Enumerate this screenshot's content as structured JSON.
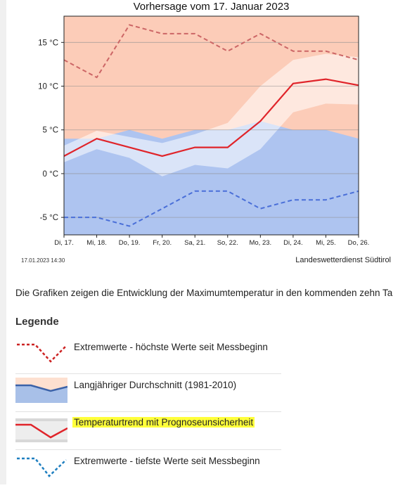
{
  "chart_data": {
    "type": "line",
    "title": "Vorhersage vom 17. Januar 2023",
    "categories": [
      "Di, 17.",
      "Mi, 18.",
      "Do, 19.",
      "Fr, 20.",
      "Sa, 21.",
      "So, 22.",
      "Mo, 23.",
      "Di, 24.",
      "Mi, 25.",
      "Do, 26."
    ],
    "ylim": [
      -7,
      18
    ],
    "yticks": [
      15,
      10,
      5,
      0,
      -5
    ],
    "ytick_labels": [
      "15 °C",
      "10 °C",
      "5 °C",
      "0 °C",
      "-5 °C"
    ],
    "grid": true,
    "series": [
      {
        "name": "Extremwerte - höchste Werte seit Messbeginn",
        "style": "dashed",
        "color": "#cc6666",
        "values": [
          13,
          11,
          17,
          16,
          16,
          14,
          16,
          14,
          14,
          13
        ]
      },
      {
        "name": "Langjähriger Durchschnitt (1981-2010)",
        "style": "area",
        "color": "#aec4f0",
        "values": [
          4,
          4,
          5,
          4,
          5,
          5,
          6,
          5,
          5,
          4
        ]
      },
      {
        "name": "Temperaturtrend mit Prognoseunsicherheit",
        "style": "line",
        "color": "#e0242a",
        "values": [
          2,
          4,
          3,
          2,
          3,
          3,
          6,
          10.3,
          10.8,
          10.1
        ],
        "uncertainty_low": [
          1.3,
          2.8,
          1.8,
          -0.3,
          1,
          0.6,
          2.8,
          7,
          8,
          7.9
        ],
        "uncertainty_high": [
          3.2,
          4.9,
          4.2,
          3.5,
          4.5,
          5.8,
          10,
          13,
          13.7,
          13.3
        ]
      },
      {
        "name": "Extremwerte - tiefste Werte seit Messbeginn",
        "style": "dashed",
        "color": "#4a6fd8",
        "values": [
          -5,
          -5,
          -6,
          -4,
          -2,
          -2,
          -4,
          -3,
          -3,
          -2
        ]
      }
    ]
  },
  "footer": {
    "timestamp": "17.01.2023 14:30",
    "source": "Landeswetterdienst Südtirol"
  },
  "text": {
    "description": "Die Grafiken zeigen die Entwicklung der Maximumtemperatur in den kommenden zehn Ta",
    "legend_heading": "Legende"
  },
  "legend": [
    {
      "label": "Extremwerte - höchste Werte seit Messbeginn",
      "icon": "red-dashed-line-icon",
      "color": "#cc2222"
    },
    {
      "label": "Langjähriger Durchschnitt (1981-2010)",
      "icon": "average-area-icon",
      "color": "#3b62a8"
    },
    {
      "label": "Temperaturtrend mit Prognoseunsicherheit",
      "icon": "trend-uncertainty-icon",
      "color": "#e0242a",
      "highlight_color": "#ffff3a"
    },
    {
      "label": "Extremwerte - tiefste Werte seit Messbeginn",
      "icon": "blue-dashed-line-icon",
      "color": "#1f7fc0"
    }
  ]
}
